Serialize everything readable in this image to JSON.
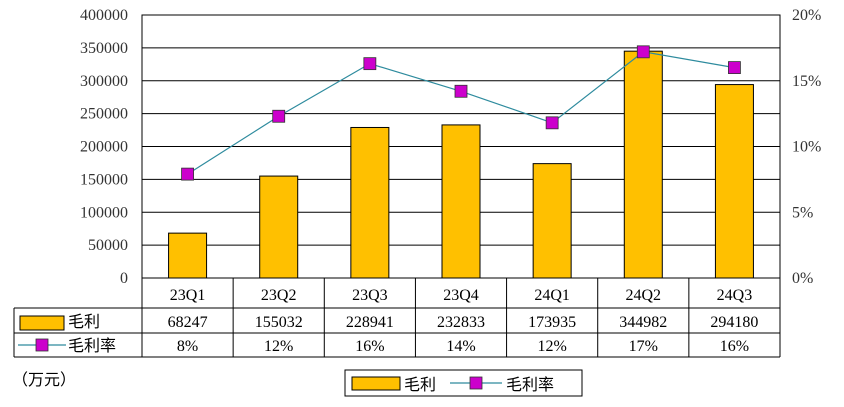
{
  "chart_data": {
    "type": "bar",
    "categories": [
      "23Q1",
      "23Q2",
      "23Q3",
      "23Q4",
      "24Q1",
      "24Q2",
      "24Q3"
    ],
    "series": [
      {
        "name": "毛利",
        "kind": "bar",
        "axis": "left",
        "values": [
          68247,
          155032,
          228941,
          232833,
          173935,
          344982,
          294180
        ],
        "labels": [
          "68247",
          "155032",
          "228941",
          "232833",
          "173935",
          "344982",
          "294180"
        ],
        "color": "#FFC000"
      },
      {
        "name": "毛利率",
        "kind": "line",
        "axis": "right",
        "values": [
          7.9,
          12.3,
          16.3,
          14.2,
          11.8,
          17.2,
          16.0
        ],
        "labels": [
          "8%",
          "12%",
          "16%",
          "14%",
          "12%",
          "17%",
          "16%"
        ],
        "color": "#CC00CC",
        "line_color": "#2E8B9E"
      }
    ],
    "left_axis": {
      "min": 0,
      "max": 400000,
      "step": 50000,
      "ticks": [
        "0",
        "50000",
        "100000",
        "150000",
        "200000",
        "250000",
        "300000",
        "350000",
        "400000"
      ]
    },
    "right_axis": {
      "min": 0,
      "max": 20,
      "step": 5,
      "ticks": [
        "0%",
        "5%",
        "10%",
        "15%",
        "20%"
      ]
    },
    "grid": true,
    "legend_position": "bottom",
    "unit": "（万元）"
  }
}
